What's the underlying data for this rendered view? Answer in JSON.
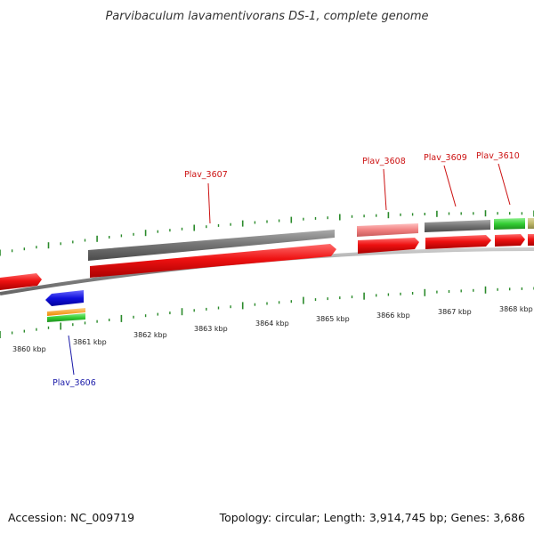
{
  "title": "Parvibaculum lavamentivorans DS-1, complete genome",
  "footer": {
    "accession": "Accession: NC_009719",
    "summary": "Topology: circular; Length: 3,914,745 bp; Genes: 3,686"
  },
  "ruler": {
    "labels": [
      "3860 kbp",
      "3861 kbp",
      "3862 kbp",
      "3863 kbp",
      "3864 kbp",
      "3865 kbp",
      "3866 kbp",
      "3867 kbp",
      "3868 kbp"
    ]
  },
  "gene_labels": [
    {
      "name": "Plav_3606",
      "color": "#1a1aa8"
    },
    {
      "name": "Plav_3607",
      "color": "#cc1111"
    },
    {
      "name": "Plav_3608",
      "color": "#cc1111"
    },
    {
      "name": "Plav_3609",
      "color": "#cc1111"
    },
    {
      "name": "Plav_3610",
      "color": "#cc1111"
    }
  ],
  "colors": {
    "cds_red": "#ee1111",
    "gray_feature": "#777777",
    "pink_feature": "#f08080",
    "green_feature": "#33cc33",
    "khaki_feature": "#bdb76b",
    "blue_feature": "#1111dd",
    "orange_feature": "#ff9900",
    "tick_green": "#2a8a2a",
    "backbone": "#8a8a8a"
  }
}
